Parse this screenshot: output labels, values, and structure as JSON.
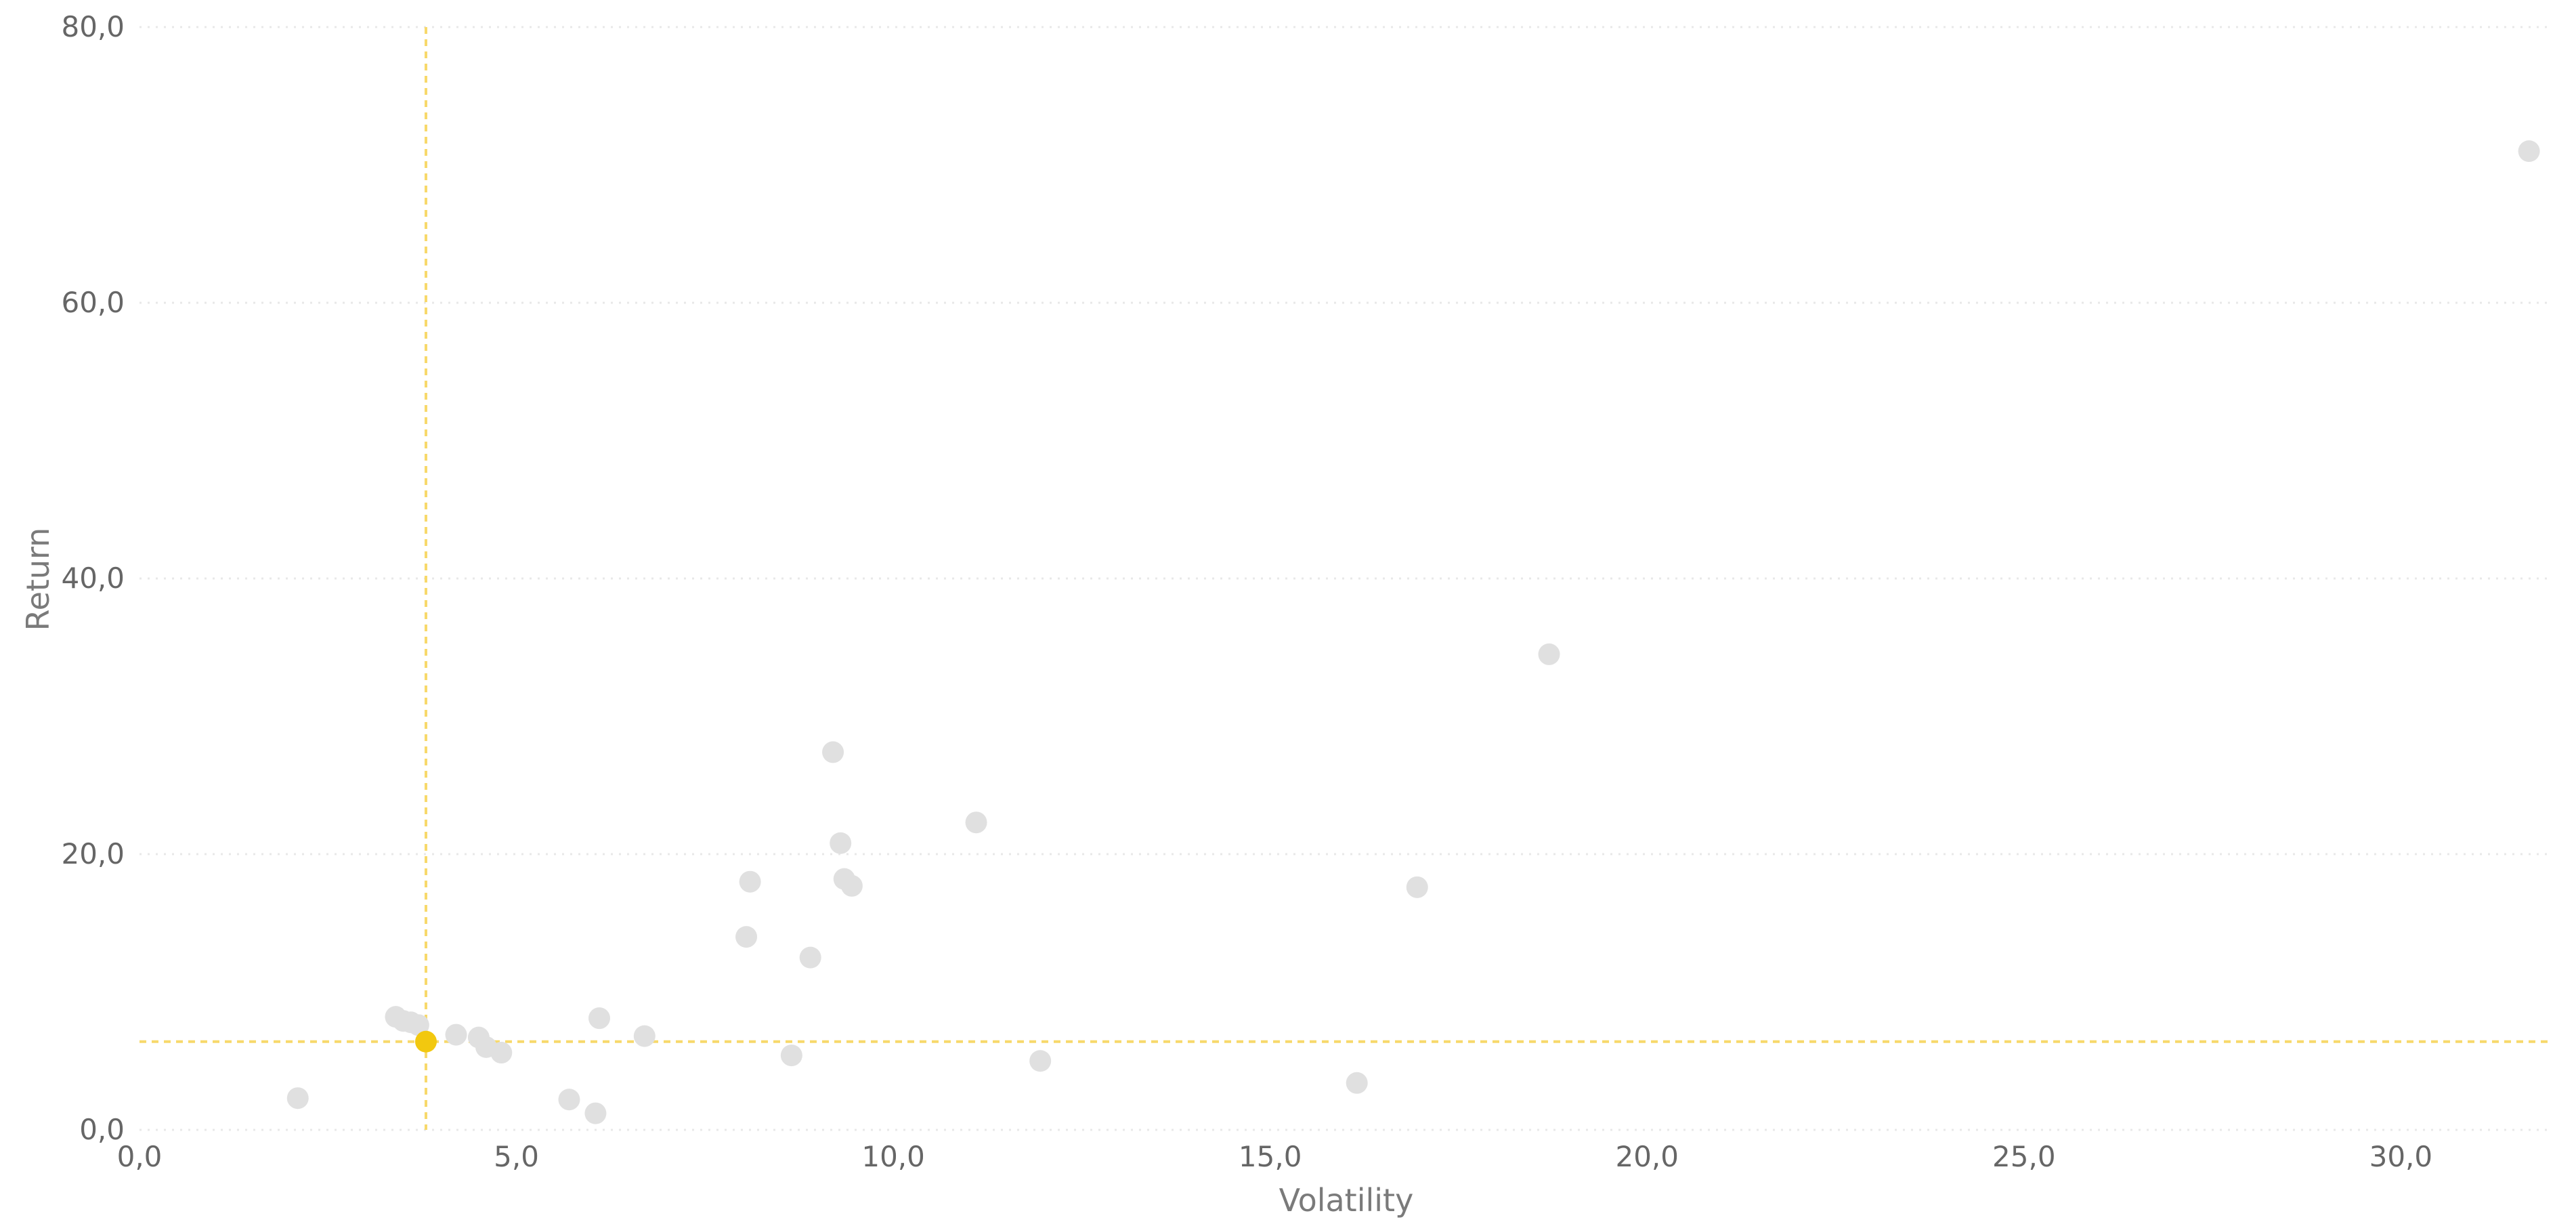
{
  "chart_data": {
    "type": "scatter",
    "title": "",
    "xlabel": "Volatility",
    "ylabel": "Return",
    "xlim": [
      0,
      32
    ],
    "ylim": [
      0,
      80
    ],
    "x_ticks": [
      0,
      5,
      10,
      15,
      20,
      25,
      30
    ],
    "x_tick_labels": [
      "0,0",
      "5,0",
      "10,0",
      "15,0",
      "20,0",
      "25,0",
      "30,0"
    ],
    "y_ticks": [
      0,
      20,
      40,
      60,
      80
    ],
    "y_tick_labels": [
      "0,0",
      "20,0",
      "40,0",
      "60,0",
      "80,0"
    ],
    "grid": "horizontal dotted",
    "legend": "none",
    "colors": {
      "point": "#e0e0e0",
      "highlight": "#f2c80f",
      "reference_line": "#f7d96b",
      "tick_text": "#666666",
      "axis_title": "#7a7a7a",
      "grid": "#e8e8e8"
    },
    "points": [
      {
        "x": 2.1,
        "y": 2.3
      },
      {
        "x": 3.4,
        "y": 8.2
      },
      {
        "x": 3.5,
        "y": 7.9
      },
      {
        "x": 3.6,
        "y": 7.8
      },
      {
        "x": 3.7,
        "y": 7.6
      },
      {
        "x": 4.2,
        "y": 6.9
      },
      {
        "x": 4.5,
        "y": 6.7
      },
      {
        "x": 4.6,
        "y": 6.0
      },
      {
        "x": 4.8,
        "y": 5.6
      },
      {
        "x": 5.7,
        "y": 2.2
      },
      {
        "x": 6.05,
        "y": 1.2
      },
      {
        "x": 6.1,
        "y": 8.1
      },
      {
        "x": 6.7,
        "y": 6.8
      },
      {
        "x": 8.05,
        "y": 14.0
      },
      {
        "x": 8.1,
        "y": 18.0
      },
      {
        "x": 8.65,
        "y": 5.4
      },
      {
        "x": 8.9,
        "y": 12.5
      },
      {
        "x": 9.2,
        "y": 27.4
      },
      {
        "x": 9.3,
        "y": 20.8
      },
      {
        "x": 9.35,
        "y": 18.2
      },
      {
        "x": 9.45,
        "y": 17.7
      },
      {
        "x": 11.1,
        "y": 22.3
      },
      {
        "x": 11.95,
        "y": 5.0
      },
      {
        "x": 16.15,
        "y": 3.4
      },
      {
        "x": 16.95,
        "y": 17.6
      },
      {
        "x": 18.7,
        "y": 34.5
      },
      {
        "x": 31.7,
        "y": 71.0
      }
    ],
    "highlighted_point": {
      "x": 3.8,
      "y": 6.4
    },
    "reference_lines": {
      "x": 3.8,
      "y": 6.4
    }
  }
}
